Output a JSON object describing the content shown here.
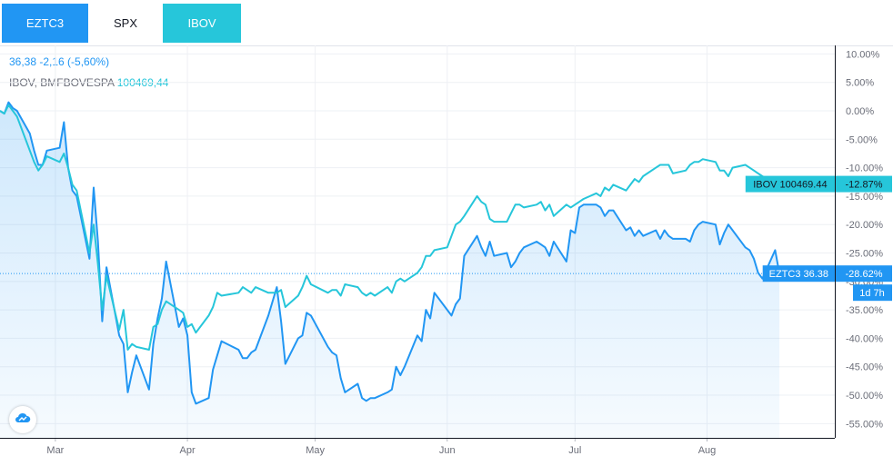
{
  "tabs": [
    {
      "label": "EZTC3",
      "bg": "#2196f3",
      "color": "#ffffff"
    },
    {
      "label": "SPX",
      "bg": "#ffffff",
      "color": "#131722"
    },
    {
      "label": "IBOV",
      "bg": "#26c6da",
      "color": "#ffffff"
    }
  ],
  "legend": {
    "main_value": "36,38",
    "main_change": "-2,16 (-5,60%)",
    "compare_name": "IBOV, BMFBOVESPA",
    "compare_value": "100469,44"
  },
  "colors": {
    "eztc3": "#2196f3",
    "ibov": "#26c6da",
    "grid": "#eef0f4",
    "axis_text": "#6a6d78"
  },
  "chart_data": {
    "type": "line",
    "ylim": [
      -57.5,
      11.5
    ],
    "y_ticks": [
      10,
      5,
      0,
      -5,
      -10,
      -15,
      -20,
      -25,
      -30,
      -35,
      -40,
      -45,
      -50,
      -55
    ],
    "y_tick_labels": [
      "10.00%",
      "5.00%",
      "0.00%",
      "-5.00%",
      "-10.00%",
      "-15.00%",
      "-20.00%",
      "-25.00%",
      "-30.00%",
      "-35.00%",
      "-40.00%",
      "-45.00%",
      "-50.00%",
      "-55.00%"
    ],
    "x_range": [
      "2020-02-17",
      "2020-08-31"
    ],
    "x_ticks": [
      {
        "date": "2020-03-01",
        "label": "Mar"
      },
      {
        "date": "2020-04-01",
        "label": "Apr"
      },
      {
        "date": "2020-05-01",
        "label": "May"
      },
      {
        "date": "2020-06-01",
        "label": "Jun"
      },
      {
        "date": "2020-07-01",
        "label": "Jul"
      },
      {
        "date": "2020-08-01",
        "label": "Aug"
      }
    ],
    "series": [
      {
        "name": "EZTC3",
        "color": "#2196f3",
        "area": true,
        "points": [
          [
            "2020-02-17",
            0
          ],
          [
            "2020-02-18",
            -0.5
          ],
          [
            "2020-02-19",
            1.5
          ],
          [
            "2020-02-20",
            0.5
          ],
          [
            "2020-02-21",
            0
          ],
          [
            "2020-02-24",
            -4
          ],
          [
            "2020-02-25",
            -7
          ],
          [
            "2020-02-26",
            -9.5
          ],
          [
            "2020-02-27",
            -9.5
          ],
          [
            "2020-02-28",
            -7
          ],
          [
            "2020-03-02",
            -6.5
          ],
          [
            "2020-03-03",
            -2
          ],
          [
            "2020-03-04",
            -10
          ],
          [
            "2020-03-05",
            -14
          ],
          [
            "2020-03-06",
            -15
          ],
          [
            "2020-03-09",
            -26
          ],
          [
            "2020-03-10",
            -13.5
          ],
          [
            "2020-03-11",
            -23
          ],
          [
            "2020-03-12",
            -37
          ],
          [
            "2020-03-13",
            -27.5
          ],
          [
            "2020-03-16",
            -39.5
          ],
          [
            "2020-03-17",
            -41
          ],
          [
            "2020-03-18",
            -49.5
          ],
          [
            "2020-03-19",
            -46
          ],
          [
            "2020-03-20",
            -43
          ],
          [
            "2020-03-23",
            -49
          ],
          [
            "2020-03-24",
            -41
          ],
          [
            "2020-03-25",
            -36.5
          ],
          [
            "2020-03-26",
            -33
          ],
          [
            "2020-03-27",
            -26.5
          ],
          [
            "2020-03-30",
            -38
          ],
          [
            "2020-03-31",
            -36.5
          ],
          [
            "2020-04-01",
            -39.5
          ],
          [
            "2020-04-02",
            -49.5
          ],
          [
            "2020-04-03",
            -51.5
          ],
          [
            "2020-04-06",
            -50.5
          ],
          [
            "2020-04-07",
            -45.5
          ],
          [
            "2020-04-08",
            -43
          ],
          [
            "2020-04-09",
            -40.5
          ],
          [
            "2020-04-13",
            -42
          ],
          [
            "2020-04-14",
            -43.5
          ],
          [
            "2020-04-15",
            -43.5
          ],
          [
            "2020-04-16",
            -42.5
          ],
          [
            "2020-04-17",
            -42
          ],
          [
            "2020-04-20",
            -36
          ],
          [
            "2020-04-22",
            -31
          ],
          [
            "2020-04-23",
            -37
          ],
          [
            "2020-04-24",
            -44.5
          ],
          [
            "2020-04-27",
            -40
          ],
          [
            "2020-04-28",
            -39.5
          ],
          [
            "2020-04-29",
            -35.5
          ],
          [
            "2020-04-30",
            -36
          ],
          [
            "2020-05-04",
            -41.5
          ],
          [
            "2020-05-05",
            -42.5
          ],
          [
            "2020-05-06",
            -43
          ],
          [
            "2020-05-07",
            -47
          ],
          [
            "2020-05-08",
            -49.5
          ],
          [
            "2020-05-11",
            -48
          ],
          [
            "2020-05-12",
            -50.5
          ],
          [
            "2020-05-13",
            -51
          ],
          [
            "2020-05-14",
            -50.5
          ],
          [
            "2020-05-15",
            -50.5
          ],
          [
            "2020-05-18",
            -49.5
          ],
          [
            "2020-05-19",
            -49
          ],
          [
            "2020-05-20",
            -45
          ],
          [
            "2020-05-21",
            -46.5
          ],
          [
            "2020-05-22",
            -45
          ],
          [
            "2020-05-25",
            -39.5
          ],
          [
            "2020-05-26",
            -40.5
          ],
          [
            "2020-05-27",
            -35
          ],
          [
            "2020-05-28",
            -36.5
          ],
          [
            "2020-05-29",
            -32
          ],
          [
            "2020-06-01",
            -35
          ],
          [
            "2020-06-02",
            -36
          ],
          [
            "2020-06-03",
            -34
          ],
          [
            "2020-06-04",
            -33
          ],
          [
            "2020-06-05",
            -25.5
          ],
          [
            "2020-06-08",
            -22
          ],
          [
            "2020-06-09",
            -24
          ],
          [
            "2020-06-10",
            -25.5
          ],
          [
            "2020-06-11",
            -23
          ],
          [
            "2020-06-12",
            -25.5
          ],
          [
            "2020-06-15",
            -25
          ],
          [
            "2020-06-16",
            -27.5
          ],
          [
            "2020-06-17",
            -26.5
          ],
          [
            "2020-06-18",
            -25
          ],
          [
            "2020-06-19",
            -24
          ],
          [
            "2020-06-22",
            -23
          ],
          [
            "2020-06-23",
            -23.5
          ],
          [
            "2020-06-24",
            -24
          ],
          [
            "2020-06-25",
            -25.5
          ],
          [
            "2020-06-26",
            -23
          ],
          [
            "2020-06-29",
            -26.5
          ],
          [
            "2020-06-30",
            -21
          ],
          [
            "2020-07-01",
            -21.5
          ],
          [
            "2020-07-02",
            -17
          ],
          [
            "2020-07-03",
            -16.5
          ],
          [
            "2020-07-06",
            -16.5
          ],
          [
            "2020-07-07",
            -17
          ],
          [
            "2020-07-08",
            -18.5
          ],
          [
            "2020-07-09",
            -17.5
          ],
          [
            "2020-07-10",
            -17.5
          ],
          [
            "2020-07-13",
            -21
          ],
          [
            "2020-07-14",
            -20.5
          ],
          [
            "2020-07-15",
            -22
          ],
          [
            "2020-07-16",
            -21
          ],
          [
            "2020-07-17",
            -22
          ],
          [
            "2020-07-20",
            -21
          ],
          [
            "2020-07-21",
            -22.5
          ],
          [
            "2020-07-22",
            -21
          ],
          [
            "2020-07-23",
            -22
          ],
          [
            "2020-07-24",
            -22.5
          ],
          [
            "2020-07-27",
            -22.5
          ],
          [
            "2020-07-28",
            -23
          ],
          [
            "2020-07-29",
            -21
          ],
          [
            "2020-07-30",
            -20
          ],
          [
            "2020-07-31",
            -19.5
          ],
          [
            "2020-08-03",
            -20
          ],
          [
            "2020-08-04",
            -23.5
          ],
          [
            "2020-08-05",
            -21.5
          ],
          [
            "2020-08-06",
            -20
          ],
          [
            "2020-08-07",
            -21
          ],
          [
            "2020-08-10",
            -24
          ],
          [
            "2020-08-11",
            -24.5
          ],
          [
            "2020-08-12",
            -26
          ],
          [
            "2020-08-13",
            -28.5
          ],
          [
            "2020-08-14",
            -29.5
          ],
          [
            "2020-08-17",
            -24.5
          ],
          [
            "2020-08-18",
            -28.62
          ]
        ]
      },
      {
        "name": "IBOV",
        "color": "#26c6da",
        "area": false,
        "points": [
          [
            "2020-02-17",
            0
          ],
          [
            "2020-02-18",
            -0.5
          ],
          [
            "2020-02-19",
            1
          ],
          [
            "2020-02-20",
            0
          ],
          [
            "2020-02-21",
            -1
          ],
          [
            "2020-02-24",
            -7
          ],
          [
            "2020-02-25",
            -9
          ],
          [
            "2020-02-26",
            -10.5
          ],
          [
            "2020-02-27",
            -9.5
          ],
          [
            "2020-02-28",
            -8
          ],
          [
            "2020-03-02",
            -9
          ],
          [
            "2020-03-03",
            -7.5
          ],
          [
            "2020-03-04",
            -10
          ],
          [
            "2020-03-05",
            -13
          ],
          [
            "2020-03-06",
            -14
          ],
          [
            "2020-03-09",
            -25
          ],
          [
            "2020-03-10",
            -20
          ],
          [
            "2020-03-11",
            -27
          ],
          [
            "2020-03-12",
            -35
          ],
          [
            "2020-03-13",
            -29
          ],
          [
            "2020-03-16",
            -38.5
          ],
          [
            "2020-03-17",
            -35
          ],
          [
            "2020-03-18",
            -42
          ],
          [
            "2020-03-19",
            -41
          ],
          [
            "2020-03-20",
            -41.5
          ],
          [
            "2020-03-23",
            -42
          ],
          [
            "2020-03-24",
            -38
          ],
          [
            "2020-03-25",
            -37.5
          ],
          [
            "2020-03-26",
            -35
          ],
          [
            "2020-03-27",
            -33.5
          ],
          [
            "2020-03-30",
            -35
          ],
          [
            "2020-03-31",
            -35.5
          ],
          [
            "2020-04-01",
            -38
          ],
          [
            "2020-04-02",
            -37.5
          ],
          [
            "2020-04-03",
            -39
          ],
          [
            "2020-04-06",
            -36
          ],
          [
            "2020-04-07",
            -34.5
          ],
          [
            "2020-04-08",
            -32
          ],
          [
            "2020-04-09",
            -32.5
          ],
          [
            "2020-04-13",
            -32
          ],
          [
            "2020-04-14",
            -31
          ],
          [
            "2020-04-15",
            -31.5
          ],
          [
            "2020-04-16",
            -32
          ],
          [
            "2020-04-17",
            -31
          ],
          [
            "2020-04-20",
            -32
          ],
          [
            "2020-04-22",
            -32
          ],
          [
            "2020-04-23",
            -31.5
          ],
          [
            "2020-04-24",
            -34.5
          ],
          [
            "2020-04-27",
            -32.5
          ],
          [
            "2020-04-28",
            -31
          ],
          [
            "2020-04-29",
            -29
          ],
          [
            "2020-04-30",
            -30.5
          ],
          [
            "2020-05-04",
            -32
          ],
          [
            "2020-05-05",
            -31.5
          ],
          [
            "2020-05-06",
            -31.5
          ],
          [
            "2020-05-07",
            -32.5
          ],
          [
            "2020-05-08",
            -30.5
          ],
          [
            "2020-05-11",
            -31
          ],
          [
            "2020-05-12",
            -32
          ],
          [
            "2020-05-13",
            -32.5
          ],
          [
            "2020-05-14",
            -32
          ],
          [
            "2020-05-15",
            -32.5
          ],
          [
            "2020-05-18",
            -31
          ],
          [
            "2020-05-19",
            -32
          ],
          [
            "2020-05-20",
            -30
          ],
          [
            "2020-05-21",
            -29.5
          ],
          [
            "2020-05-22",
            -30
          ],
          [
            "2020-05-25",
            -28.5
          ],
          [
            "2020-05-26",
            -27.5
          ],
          [
            "2020-05-27",
            -25.5
          ],
          [
            "2020-05-28",
            -25.5
          ],
          [
            "2020-05-29",
            -24.5
          ],
          [
            "2020-06-01",
            -24
          ],
          [
            "2020-06-02",
            -22
          ],
          [
            "2020-06-03",
            -20
          ],
          [
            "2020-06-04",
            -19.5
          ],
          [
            "2020-06-05",
            -18.5
          ],
          [
            "2020-06-08",
            -15
          ],
          [
            "2020-06-09",
            -16
          ],
          [
            "2020-06-10",
            -16.5
          ],
          [
            "2020-06-11",
            -19
          ],
          [
            "2020-06-12",
            -19.5
          ],
          [
            "2020-06-15",
            -19.5
          ],
          [
            "2020-06-16",
            -18
          ],
          [
            "2020-06-17",
            -16.5
          ],
          [
            "2020-06-18",
            -16.5
          ],
          [
            "2020-06-19",
            -17
          ],
          [
            "2020-06-22",
            -16.5
          ],
          [
            "2020-06-23",
            -16
          ],
          [
            "2020-06-24",
            -17.5
          ],
          [
            "2020-06-25",
            -16.5
          ],
          [
            "2020-06-26",
            -18.5
          ],
          [
            "2020-06-29",
            -16.5
          ],
          [
            "2020-06-30",
            -17
          ],
          [
            "2020-07-01",
            -16.5
          ],
          [
            "2020-07-02",
            -16
          ],
          [
            "2020-07-03",
            -15.5
          ],
          [
            "2020-07-06",
            -14.5
          ],
          [
            "2020-07-07",
            -15
          ],
          [
            "2020-07-08",
            -13.5
          ],
          [
            "2020-07-09",
            -14
          ],
          [
            "2020-07-10",
            -13
          ],
          [
            "2020-07-13",
            -14
          ],
          [
            "2020-07-14",
            -13
          ],
          [
            "2020-07-15",
            -12
          ],
          [
            "2020-07-16",
            -12.5
          ],
          [
            "2020-07-17",
            -11.5
          ],
          [
            "2020-07-20",
            -10
          ],
          [
            "2020-07-21",
            -9.5
          ],
          [
            "2020-07-22",
            -9.5
          ],
          [
            "2020-07-23",
            -9.5
          ],
          [
            "2020-07-24",
            -11
          ],
          [
            "2020-07-27",
            -10.5
          ],
          [
            "2020-07-28",
            -9.5
          ],
          [
            "2020-07-29",
            -9
          ],
          [
            "2020-07-30",
            -9
          ],
          [
            "2020-07-31",
            -8.5
          ],
          [
            "2020-08-03",
            -9
          ],
          [
            "2020-08-04",
            -10.5
          ],
          [
            "2020-08-05",
            -10.5
          ],
          [
            "2020-08-06",
            -11.5
          ],
          [
            "2020-08-07",
            -10
          ],
          [
            "2020-08-10",
            -9.5
          ],
          [
            "2020-08-11",
            -10
          ],
          [
            "2020-08-12",
            -10.5
          ],
          [
            "2020-08-13",
            -11
          ],
          [
            "2020-08-14",
            -11.5
          ],
          [
            "2020-08-17",
            -12.5
          ],
          [
            "2020-08-18",
            -12.87
          ]
        ]
      }
    ],
    "price_tags": [
      {
        "text": "IBOV 100469.44",
        "series": "IBOV",
        "value": -12.87
      },
      {
        "text": "EZTC3 36.38",
        "series": "EZTC3",
        "value": -28.62
      }
    ],
    "axis_tags": [
      {
        "text": "-12.87%",
        "value": -12.87,
        "color": "#26c6da"
      },
      {
        "text": "-28.62%",
        "value": -28.62,
        "color": "#2196f3"
      }
    ],
    "countdown": "1d 7h"
  }
}
